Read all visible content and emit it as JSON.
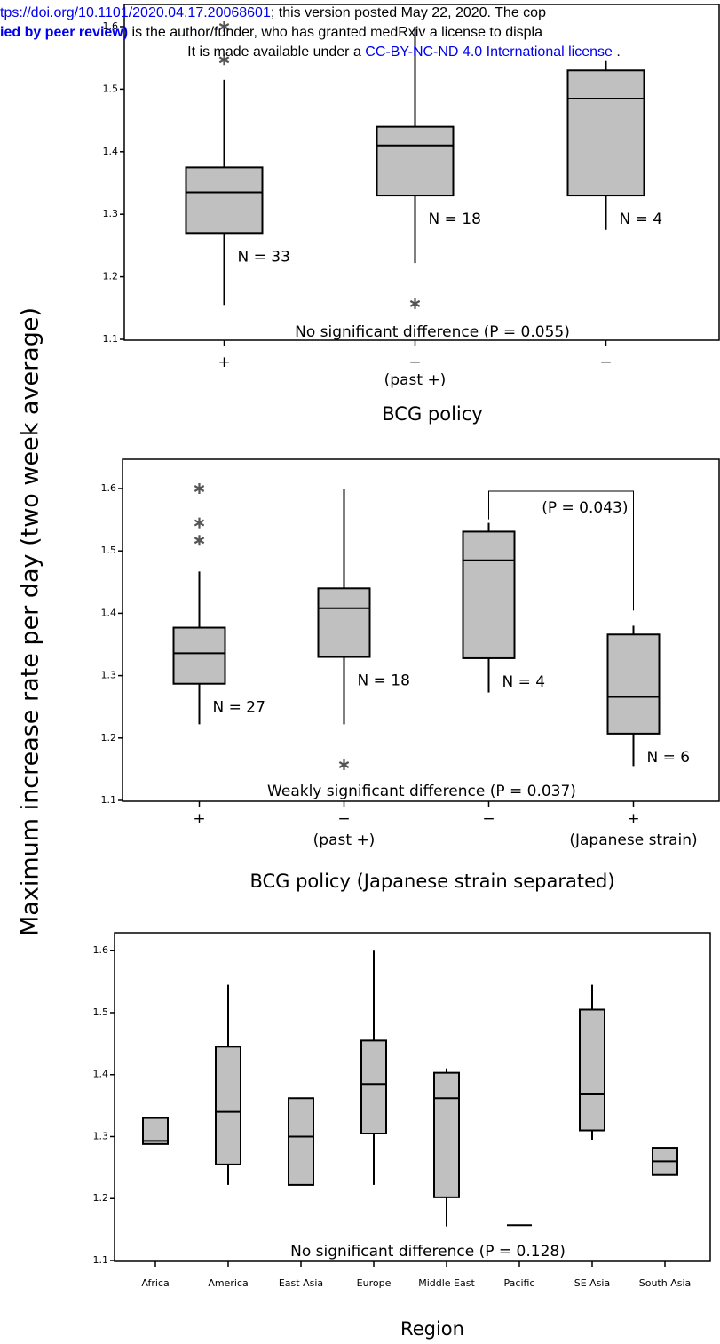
{
  "header": {
    "line1": [
      "tps://doi.org/10.1101/2020.04.17.20068601",
      "; this version posted May 22, 2020. The cop"
    ],
    "line2": [
      "ied by peer review)",
      " is the author/funder, who has granted medRxiv a license to displa"
    ],
    "line3": [
      "It is made available under a ",
      "CC-BY-NC-ND 4.0 International license",
      " ."
    ]
  },
  "y_label": "Maximum increase rate per day (two week average)",
  "chart_data": [
    {
      "type": "box",
      "categories": [
        "+",
        "−",
        "−"
      ],
      "category_notes": [
        null,
        "(past +)",
        null
      ],
      "boxes": [
        {
          "whisker_low": 1.155,
          "q1": 1.27,
          "median": 1.335,
          "q3": 1.375,
          "whisker_high": 1.515,
          "outliers": [
            1.6,
            1.547
          ]
        },
        {
          "whisker_low": 1.222,
          "q1": 1.33,
          "median": 1.41,
          "q3": 1.44,
          "whisker_high": 1.6,
          "outliers": [
            1.157
          ]
        },
        {
          "whisker_low": 1.275,
          "q1": 1.33,
          "median": 1.485,
          "q3": 1.53,
          "whisker_high": 1.545,
          "outliers": []
        }
      ],
      "n_labels": [
        "N = 33",
        "N = 18",
        "N = 4"
      ],
      "annotation": "No significant difference (P = 0.055)",
      "x_label": "BCG policy",
      "color": "#c0c0c0",
      "ylim": [
        1.1,
        1.6355
      ],
      "yticks": [
        1.1,
        1.2,
        1.3,
        1.4,
        1.5,
        1.6
      ]
    },
    {
      "type": "box",
      "categories": [
        "+",
        "−",
        "−",
        "+"
      ],
      "category_notes": [
        null,
        "(past +)",
        null,
        "(Japanese strain)"
      ],
      "boxes": [
        {
          "whisker_low": 1.222,
          "q1": 1.287,
          "median": 1.336,
          "q3": 1.377,
          "whisker_high": 1.467,
          "outliers": [
            1.6,
            1.545,
            1.517
          ]
        },
        {
          "whisker_low": 1.222,
          "q1": 1.33,
          "median": 1.408,
          "q3": 1.44,
          "whisker_high": 1.6,
          "outliers": [
            1.157
          ]
        },
        {
          "whisker_low": 1.273,
          "q1": 1.328,
          "median": 1.485,
          "q3": 1.531,
          "whisker_high": 1.545,
          "outliers": []
        },
        {
          "whisker_low": 1.155,
          "q1": 1.207,
          "median": 1.266,
          "q3": 1.366,
          "whisker_high": 1.38,
          "outliers": []
        }
      ],
      "n_labels": [
        "N = 27",
        "N = 18",
        "N = 4",
        "N = 6"
      ],
      "bracket_label": "(P = 0.043)",
      "annotation": "Weakly significant difference (P = 0.037)",
      "x_label": "BCG policy (Japanese strain separated)",
      "color": "#c0c0c0",
      "ylim": [
        1.1,
        1.647
      ],
      "yticks": [
        1.1,
        1.2,
        1.3,
        1.4,
        1.5,
        1.6
      ]
    },
    {
      "type": "box",
      "categories": [
        "Africa",
        "America",
        "East Asia",
        "Europe",
        "Middle East",
        "Pacific",
        "SE Asia",
        "South Asia"
      ],
      "boxes": [
        {
          "whisker_low": 1.288,
          "q1": 1.288,
          "median": 1.293,
          "q3": 1.33,
          "whisker_high": 1.33,
          "outliers": []
        },
        {
          "whisker_low": 1.222,
          "q1": 1.255,
          "median": 1.34,
          "q3": 1.445,
          "whisker_high": 1.545,
          "outliers": []
        },
        {
          "whisker_low": 1.222,
          "q1": 1.222,
          "median": 1.3,
          "q3": 1.362,
          "whisker_high": 1.362,
          "outliers": []
        },
        {
          "whisker_low": 1.222,
          "q1": 1.305,
          "median": 1.385,
          "q3": 1.455,
          "whisker_high": 1.6,
          "outliers": []
        },
        {
          "whisker_low": 1.155,
          "q1": 1.202,
          "median": 1.362,
          "q3": 1.403,
          "whisker_high": 1.41,
          "outliers": []
        },
        {
          "whisker_low": 1.157,
          "q1": 1.157,
          "median": 1.157,
          "q3": 1.157,
          "whisker_high": 1.157,
          "outliers": []
        },
        {
          "whisker_low": 1.295,
          "q1": 1.31,
          "median": 1.368,
          "q3": 1.505,
          "whisker_high": 1.545,
          "outliers": []
        },
        {
          "whisker_low": 1.238,
          "q1": 1.238,
          "median": 1.26,
          "q3": 1.282,
          "whisker_high": 1.282,
          "outliers": []
        }
      ],
      "annotation": "No significant difference (P = 0.128)",
      "x_label": "Region",
      "color": "#c0c0c0",
      "ylim": [
        1.1,
        1.629
      ],
      "yticks": [
        1.1,
        1.2,
        1.3,
        1.4,
        1.5,
        1.6
      ]
    }
  ]
}
